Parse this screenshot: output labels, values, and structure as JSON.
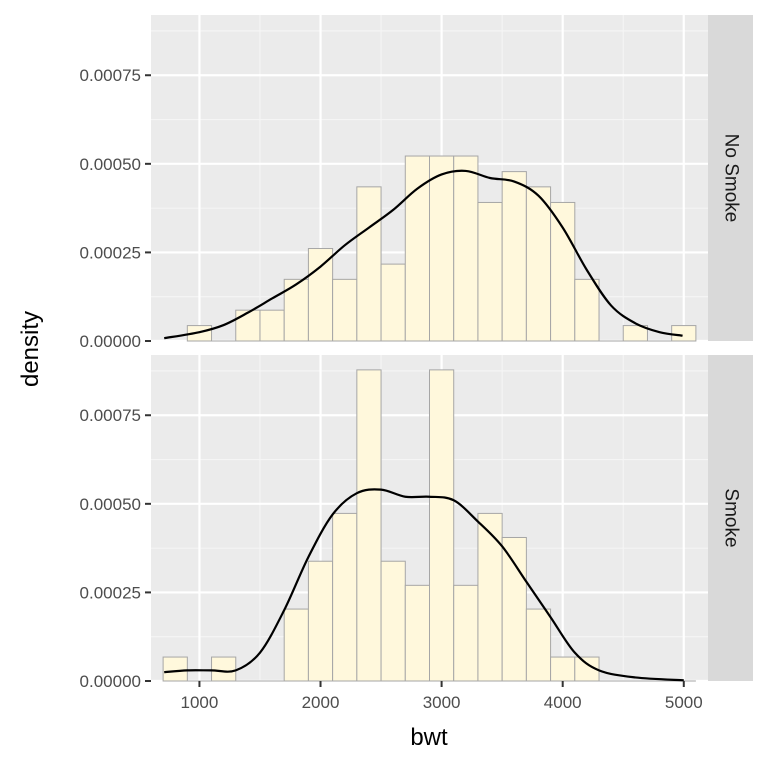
{
  "chart_data": {
    "type": "histogram",
    "xlabel": "bwt",
    "ylabel": "density",
    "xlim": [
      600,
      5200
    ],
    "ylim": [
      0,
      0.00092
    ],
    "x_ticks": [
      1000,
      2000,
      3000,
      4000,
      5000
    ],
    "x_tick_labels": [
      "1000",
      "2000",
      "3000",
      "4000",
      "5000"
    ],
    "y_ticks": [
      0,
      0.00025,
      0.0005,
      0.00075
    ],
    "y_tick_labels": [
      "0.00000",
      "0.00025",
      "0.00050",
      "0.00075"
    ],
    "bin_width": 200,
    "bar_fill": "#fff8dc",
    "bar_stroke": "#a6a6a6",
    "density_line_color": "#000000",
    "panel_background": "#ebebeb",
    "strip_background": "#d9d9d9",
    "grid": true,
    "facets": [
      {
        "label": "No Smoke",
        "bins": [
          {
            "x0": 900,
            "x1": 1100,
            "density": 4.35e-05
          },
          {
            "x0": 1300,
            "x1": 1500,
            "density": 8.7e-05
          },
          {
            "x0": 1500,
            "x1": 1700,
            "density": 8.7e-05
          },
          {
            "x0": 1700,
            "x1": 1900,
            "density": 0.000174
          },
          {
            "x0": 1900,
            "x1": 2100,
            "density": 0.000261
          },
          {
            "x0": 2100,
            "x1": 2300,
            "density": 0.000174
          },
          {
            "x0": 2300,
            "x1": 2500,
            "density": 0.000435
          },
          {
            "x0": 2500,
            "x1": 2700,
            "density": 0.000217
          },
          {
            "x0": 2700,
            "x1": 2900,
            "density": 0.000522
          },
          {
            "x0": 2900,
            "x1": 3100,
            "density": 0.000522
          },
          {
            "x0": 3100,
            "x1": 3300,
            "density": 0.000522
          },
          {
            "x0": 3300,
            "x1": 3500,
            "density": 0.000391
          },
          {
            "x0": 3500,
            "x1": 3700,
            "density": 0.000478
          },
          {
            "x0": 3700,
            "x1": 3900,
            "density": 0.000435
          },
          {
            "x0": 3900,
            "x1": 4100,
            "density": 0.000391
          },
          {
            "x0": 4100,
            "x1": 4300,
            "density": 0.000174
          },
          {
            "x0": 4500,
            "x1": 4700,
            "density": 4.35e-05
          },
          {
            "x0": 4900,
            "x1": 5100,
            "density": 4.35e-05
          }
        ],
        "density_curve": [
          [
            709,
            8e-06
          ],
          [
            1000,
            2.5e-05
          ],
          [
            1200,
            4.5e-05
          ],
          [
            1400,
            8e-05
          ],
          [
            1600,
            0.00012
          ],
          [
            1800,
            0.00016
          ],
          [
            2000,
            0.00021
          ],
          [
            2200,
            0.00027
          ],
          [
            2400,
            0.00032
          ],
          [
            2600,
            0.00037
          ],
          [
            2800,
            0.00043
          ],
          [
            3000,
            0.00047
          ],
          [
            3200,
            0.00048
          ],
          [
            3400,
            0.00046
          ],
          [
            3600,
            0.00045
          ],
          [
            3800,
            0.00041
          ],
          [
            4000,
            0.00032
          ],
          [
            4200,
            0.0002
          ],
          [
            4400,
            0.0001
          ],
          [
            4600,
            5e-05
          ],
          [
            4800,
            2.5e-05
          ],
          [
            4990,
            1.5e-05
          ]
        ]
      },
      {
        "label": "Smoke",
        "bins": [
          {
            "x0": 700,
            "x1": 900,
            "density": 6.76e-05
          },
          {
            "x0": 1100,
            "x1": 1300,
            "density": 6.76e-05
          },
          {
            "x0": 1700,
            "x1": 1900,
            "density": 0.000203
          },
          {
            "x0": 1900,
            "x1": 2100,
            "density": 0.000338
          },
          {
            "x0": 2100,
            "x1": 2300,
            "density": 0.000473
          },
          {
            "x0": 2300,
            "x1": 2500,
            "density": 0.000878
          },
          {
            "x0": 2500,
            "x1": 2700,
            "density": 0.000338
          },
          {
            "x0": 2700,
            "x1": 2900,
            "density": 0.00027
          },
          {
            "x0": 2900,
            "x1": 3100,
            "density": 0.000878
          },
          {
            "x0": 3100,
            "x1": 3300,
            "density": 0.00027
          },
          {
            "x0": 3300,
            "x1": 3500,
            "density": 0.000473
          },
          {
            "x0": 3500,
            "x1": 3700,
            "density": 0.000405
          },
          {
            "x0": 3700,
            "x1": 3900,
            "density": 0.000203
          },
          {
            "x0": 3900,
            "x1": 4100,
            "density": 6.76e-05
          },
          {
            "x0": 4100,
            "x1": 4300,
            "density": 6.76e-05
          }
        ],
        "density_curve": [
          [
            709,
            2.5e-05
          ],
          [
            900,
            3e-05
          ],
          [
            1100,
            3e-05
          ],
          [
            1300,
            3e-05
          ],
          [
            1500,
            8e-05
          ],
          [
            1700,
            0.0002
          ],
          [
            1900,
            0.00035
          ],
          [
            2100,
            0.00047
          ],
          [
            2300,
            0.00053
          ],
          [
            2500,
            0.00054
          ],
          [
            2700,
            0.00052
          ],
          [
            2900,
            0.00052
          ],
          [
            3100,
            0.00051
          ],
          [
            3300,
            0.00045
          ],
          [
            3500,
            0.00038
          ],
          [
            3700,
            0.00028
          ],
          [
            3900,
            0.00018
          ],
          [
            4100,
            8e-05
          ],
          [
            4300,
            3e-05
          ],
          [
            4600,
            1e-05
          ],
          [
            5000,
            2e-06
          ]
        ]
      }
    ]
  }
}
